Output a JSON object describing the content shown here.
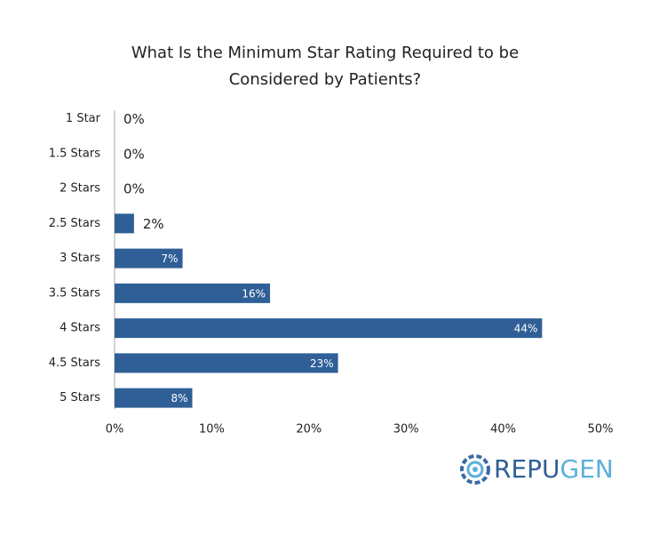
{
  "chart_data": {
    "type": "hbar",
    "title": [
      "What Is the Minimum Star Rating Required to be",
      "Considered by Patients?"
    ],
    "categories": [
      "1 Star",
      "1.5 Stars",
      "2 Stars",
      "2.5 Stars",
      "3 Stars",
      "3.5 Stars",
      "4 Stars",
      "4.5 Stars",
      "5 Stars"
    ],
    "values": [
      0,
      0,
      0,
      2,
      7,
      16,
      44,
      23,
      8
    ],
    "value_labels": [
      "0%",
      "0%",
      "0%",
      "2%",
      "7%",
      "16%",
      "44%",
      "23%",
      "8%"
    ],
    "color": "#2f5f96",
    "xlim": [
      0,
      50
    ],
    "xticks": [
      {
        "value": 0,
        "label": "0%"
      },
      {
        "value": 10,
        "label": "10%"
      },
      {
        "value": 20,
        "label": "20%"
      },
      {
        "value": 30,
        "label": "30%"
      },
      {
        "value": 40,
        "label": "40%"
      },
      {
        "value": 50,
        "label": "50%"
      }
    ],
    "grid": false
  },
  "brand": {
    "parts": [
      "REPU",
      "GEN"
    ]
  }
}
